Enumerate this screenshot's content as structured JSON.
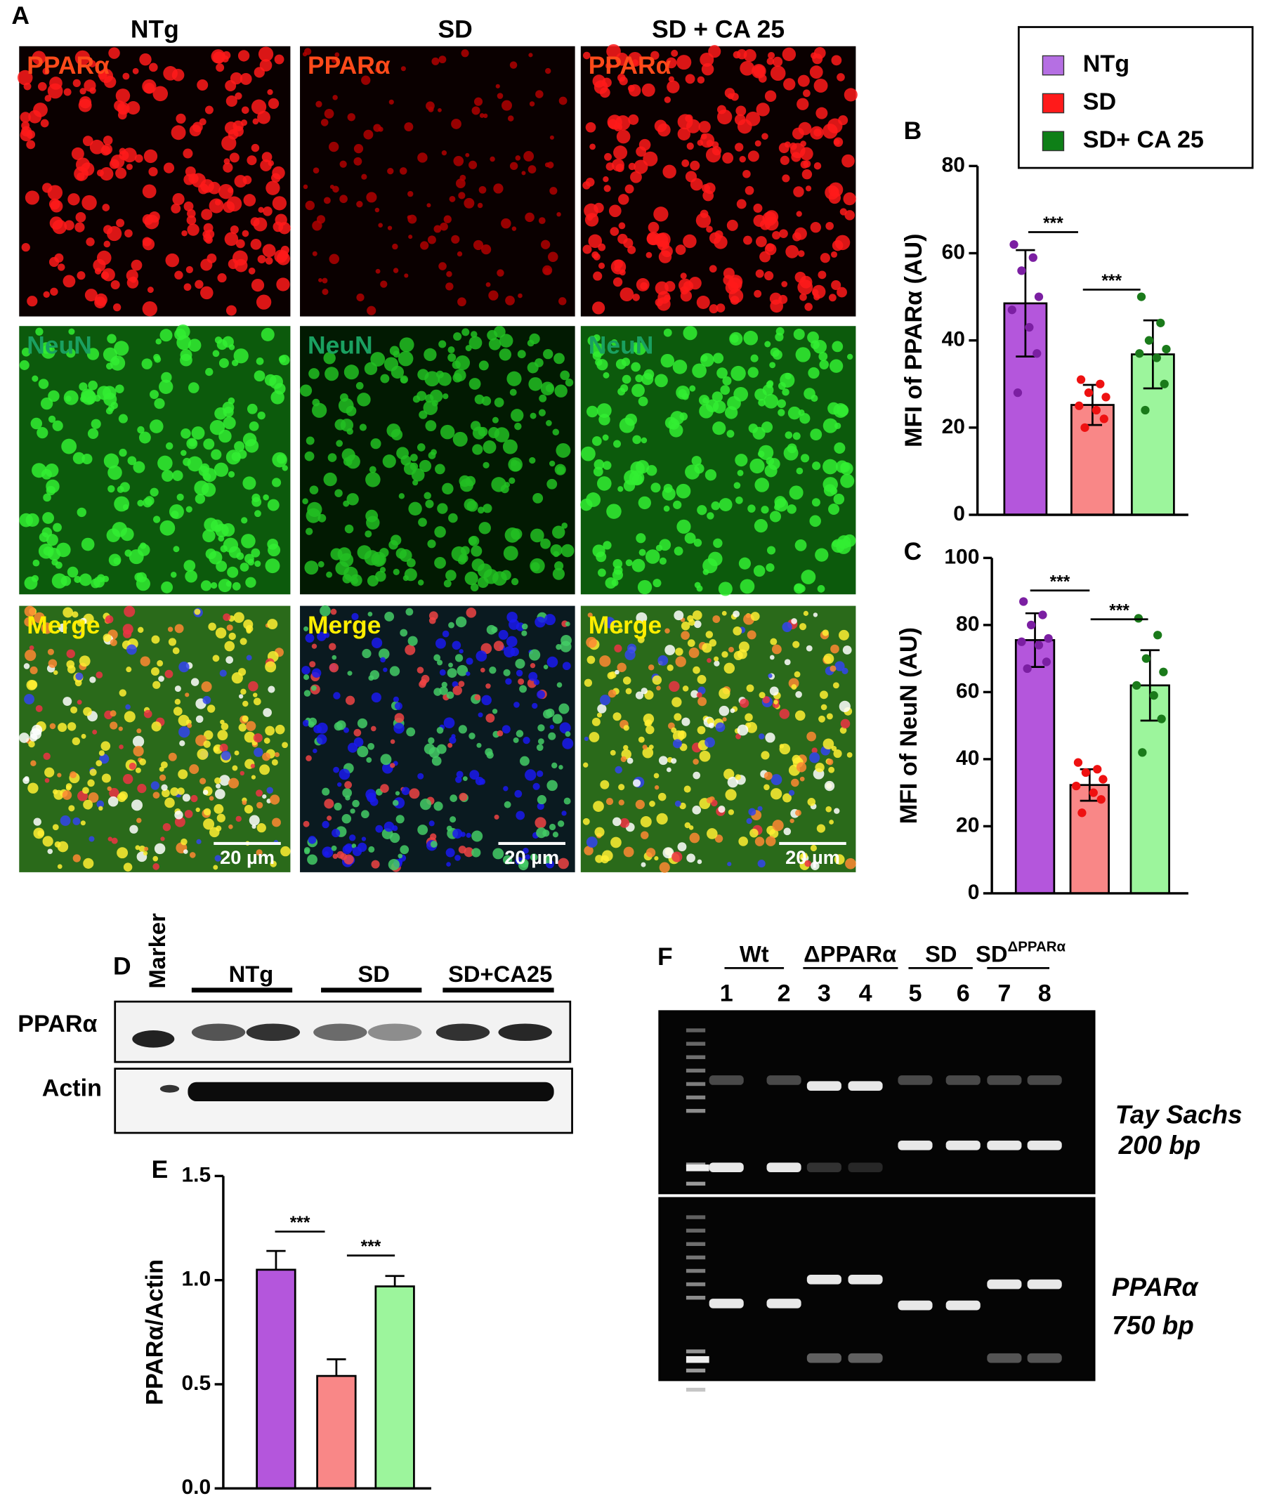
{
  "panel_labels": [
    "A",
    "B",
    "C",
    "D",
    "E",
    "F"
  ],
  "panel_a": {
    "columns": [
      "NTg",
      "SD",
      "SD + CA 25"
    ],
    "image_labels": [
      [
        "PPARα",
        "PPARα",
        "PPARα"
      ],
      [
        "NeuN",
        "NeuN",
        "NeuN"
      ],
      [
        "Merge",
        "Merge",
        "Merge"
      ]
    ],
    "scale_bars": [
      "20 µm",
      "20 µm",
      "20 µm"
    ]
  },
  "legend": [
    {
      "name": "NTg",
      "color": "#b56fe3"
    },
    {
      "name": "SD",
      "color": "#ff1a1a"
    },
    {
      "name": "SD+ CA 25",
      "color": "#0e7f17"
    }
  ],
  "chart_data": [
    {
      "type": "bar",
      "y_label": "MFI of PPARα (AU)",
      "ylim": [
        0,
        80
      ],
      "yticks": [
        0,
        20,
        40,
        60,
        80
      ],
      "values": [
        48.5,
        25.2,
        36.8
      ],
      "errors": [
        12.2,
        4.6,
        7.8
      ],
      "error_bars": "both",
      "colors": [
        "#b456dc",
        "#f98787",
        "#9cf59c"
      ],
      "point_colors": [
        "#7b1fa2",
        "#ee1111",
        "#1a7a1a"
      ],
      "points": [
        [
          62,
          59,
          56,
          50,
          47,
          43,
          37,
          28
        ],
        [
          31,
          30,
          28,
          27,
          25,
          24,
          22,
          20
        ],
        [
          50,
          44,
          40,
          38,
          37,
          36,
          30,
          24
        ]
      ],
      "significance": [
        "***",
        "***"
      ]
    },
    {
      "type": "bar",
      "y_label": "MFI of NeuN (AU)",
      "ylim": [
        0,
        100
      ],
      "yticks": [
        0,
        20,
        40,
        60,
        80,
        100
      ],
      "values": [
        75.5,
        32.3,
        62
      ],
      "errors": [
        8,
        4.7,
        10.5
      ],
      "error_bars": "both",
      "colors": [
        "#b456dc",
        "#f98787",
        "#9cf59c"
      ],
      "point_colors": [
        "#7b1fa2",
        "#ee1111",
        "#1a7a1a"
      ],
      "points": [
        [
          87,
          83,
          80,
          76,
          75,
          74,
          69,
          67
        ],
        [
          39,
          37,
          36,
          34,
          32,
          30,
          28,
          24
        ],
        [
          82,
          77,
          70,
          66,
          62,
          59,
          52,
          42
        ]
      ],
      "significance": [
        "***",
        "***"
      ]
    },
    {
      "type": "bar",
      "y_label": "PPARα/Actin",
      "ylim": [
        0,
        1.5
      ],
      "yticks": [
        {
          "value": 0,
          "label": "0.0"
        },
        0.5,
        {
          "value": 1,
          "label": "1.0"
        },
        1.5
      ],
      "values": [
        1.05,
        0.54,
        0.97
      ],
      "errors": [
        0.09,
        0.08,
        0.05
      ],
      "error_bars": "up",
      "colors": [
        "#b456dc",
        "#f98787",
        "#9cf59c"
      ],
      "significance": [
        "***",
        "***"
      ]
    }
  ],
  "panel_d": {
    "marker": "Marker",
    "groups": [
      "NTg",
      "SD",
      "SD+CA25"
    ],
    "rows": [
      "PPARα",
      "Actin"
    ]
  },
  "panel_f": {
    "groups": [
      {
        "text": "Wt"
      },
      {
        "text": "ΔPPARα"
      },
      {
        "text": "SD"
      },
      {
        "text": "SD",
        "superscript": "ΔPPARα"
      }
    ],
    "lanes": [
      1,
      2,
      3,
      4,
      5,
      6,
      7,
      8
    ],
    "gel_labels": [
      [
        "Tay Sachs",
        "200 bp"
      ],
      [
        "PPARα",
        "750 bp"
      ]
    ]
  }
}
